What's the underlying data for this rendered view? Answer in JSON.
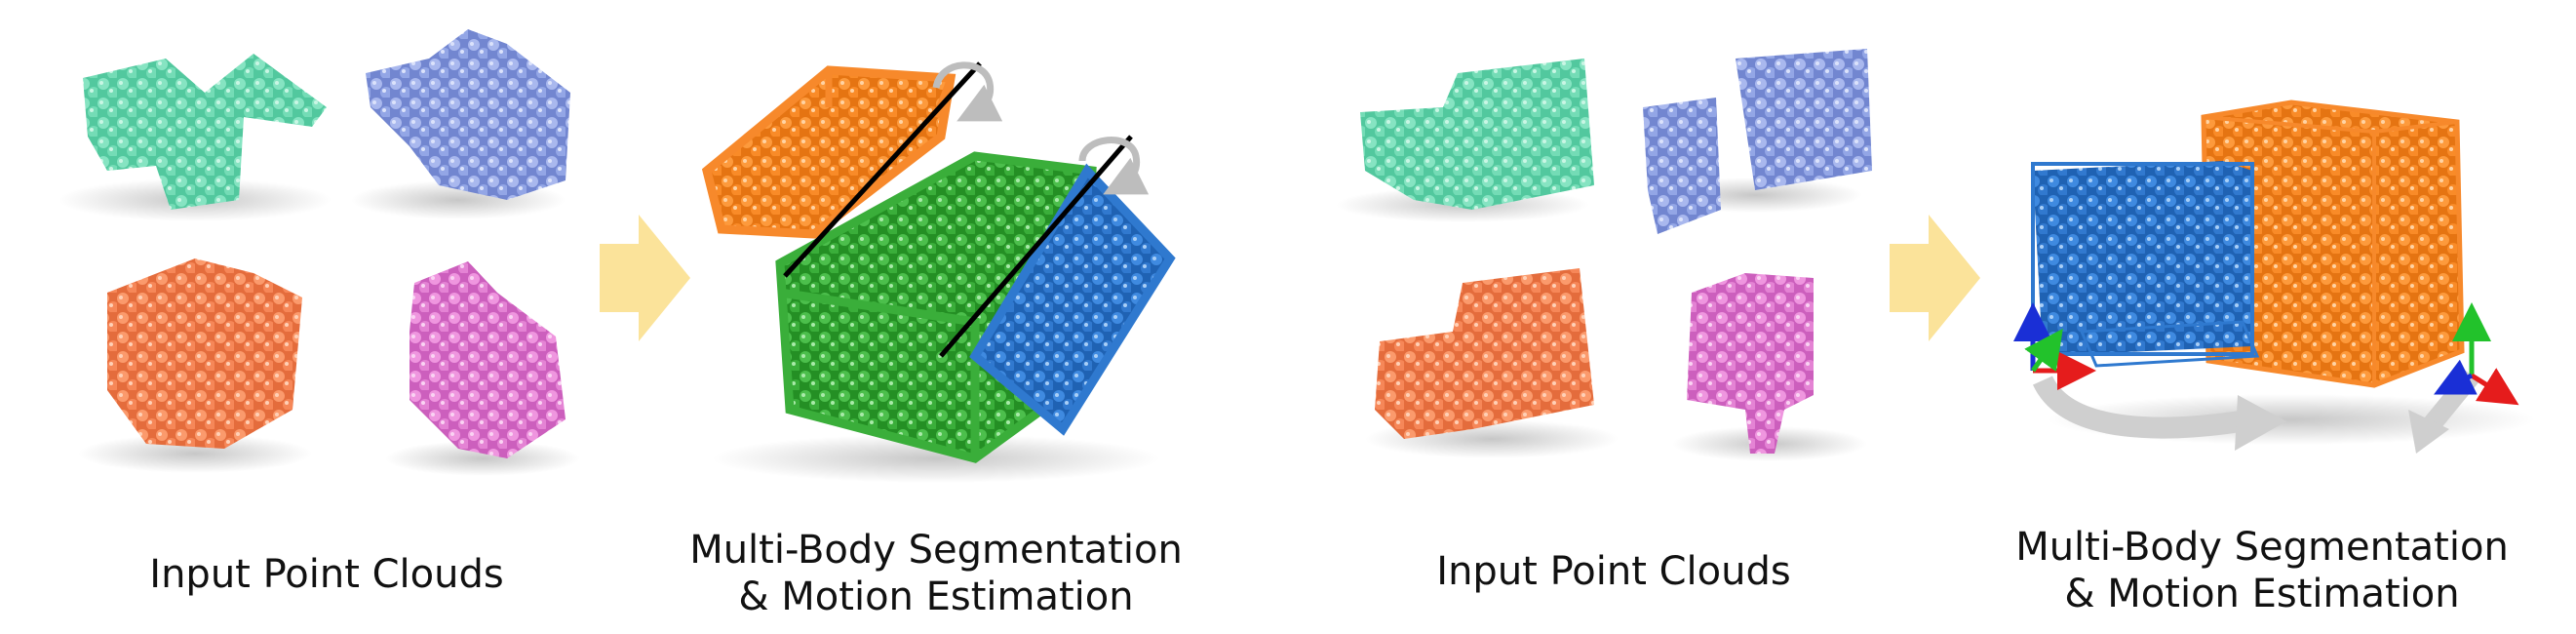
{
  "panels": [
    {
      "input_caption": "Input Point Clouds",
      "output_caption_line1": "Multi-Body Segmentation",
      "output_caption_line2": "& Motion Estimation"
    },
    {
      "input_caption": "Input Point Clouds",
      "output_caption_line1": "Multi-Body Segmentation",
      "output_caption_line2": "& Motion Estimation"
    }
  ],
  "colors": {
    "teal": "#6fd6b0",
    "periwinkle": "#8fa3e0",
    "salmon": "#f4875a",
    "pink": "#e27bd0",
    "orange": "#f7892b",
    "green": "#3aae3a",
    "blue": "#2f79cf",
    "arrow": "#fbe39a",
    "motion_arrow": "#bdbdbd",
    "axis_x": "#e51c1c",
    "axis_y": "#22c22b",
    "axis_z": "#1a2fd6"
  }
}
